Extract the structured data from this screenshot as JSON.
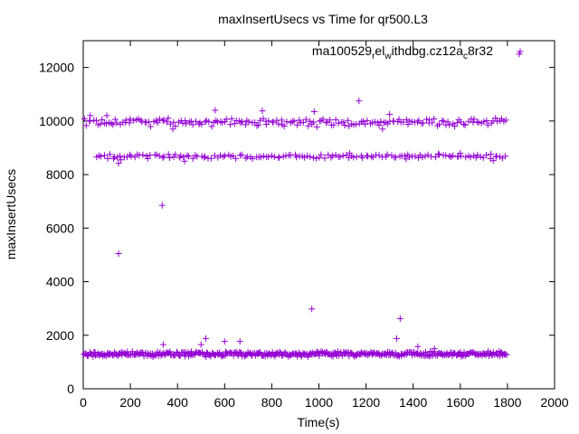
{
  "chart_data": {
    "type": "scatter",
    "title": "maxInsertUsecs vs Time for qr500.L3",
    "xlabel": "Time(s)",
    "ylabel": "maxInsertUsecs",
    "xlim": [
      0,
      2000
    ],
    "ylim": [
      0,
      13000
    ],
    "x_ticks": [
      "0",
      "200",
      "400",
      "600",
      "800",
      "1000",
      "1200",
      "1400",
      "1600",
      "1800",
      "2000"
    ],
    "y_ticks": [
      "0",
      "2000",
      "4000",
      "6000",
      "8000",
      "10000",
      "12000"
    ],
    "grid": false,
    "legend": {
      "position": "top-right",
      "parts": [
        "ma100529",
        "r",
        "el",
        "w",
        "ithdbg.cz12a",
        "c",
        "8r32"
      ]
    },
    "marker": "+",
    "color": "#9400d3",
    "series": [
      {
        "bands": [
          {
            "x_range": [
              0,
              1800
            ],
            "y_center": 1300,
            "y_spread": 110,
            "count": 420
          },
          {
            "x_range": [
              0,
              1800
            ],
            "y_center": 9950,
            "y_spread": 180,
            "count": 190
          },
          {
            "x_range": [
              50,
              1800
            ],
            "y_center": 8680,
            "y_spread": 110,
            "count": 150
          }
        ],
        "points": [
          [
            150,
            5050
          ],
          [
            335,
            6850
          ],
          [
            970,
            2980
          ],
          [
            1345,
            2620
          ],
          [
            1330,
            1880
          ],
          [
            520,
            1880
          ],
          [
            600,
            1770
          ],
          [
            665,
            1770
          ],
          [
            340,
            1650
          ],
          [
            500,
            1650
          ],
          [
            1420,
            1580
          ],
          [
            1490,
            1500
          ],
          [
            1170,
            10750
          ],
          [
            1850,
            12500
          ],
          [
            1300,
            10250
          ],
          [
            980,
            10350
          ],
          [
            760,
            10380
          ],
          [
            560,
            10400
          ],
          [
            150,
            8420
          ],
          [
            160,
            8550
          ],
          [
            430,
            8500
          ],
          [
            1740,
            8520
          ],
          [
            1370,
            8580
          ],
          [
            380,
            9700
          ],
          [
            1270,
            9700
          ],
          [
            30,
            10200
          ],
          [
            100,
            10200
          ],
          [
            1130,
            8800
          ],
          [
            1600,
            8800
          ]
        ]
      }
    ]
  }
}
